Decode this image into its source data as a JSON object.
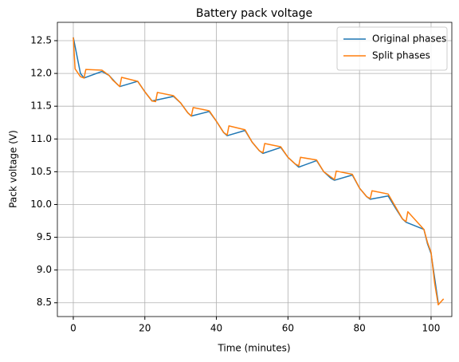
{
  "chart_data": {
    "type": "line",
    "title": "Battery pack voltage",
    "xlabel": "Time (minutes)",
    "ylabel": "Pack voltage (V)",
    "xlim": [
      -4.45,
      105.8
    ],
    "ylim": [
      8.29,
      12.78
    ],
    "xticks": [
      0,
      20,
      40,
      60,
      80,
      100
    ],
    "yticks": [
      8.5,
      {
        "value": 9,
        "label": "9.0"
      },
      9.5,
      {
        "value": 10,
        "label": "10.0"
      },
      10.5,
      {
        "value": 11,
        "label": "11.0"
      },
      11.5,
      {
        "value": 12,
        "label": "12.0"
      },
      12.5
    ],
    "grid": true,
    "legend": "upper right",
    "series": [
      {
        "name": "Original phases",
        "color": "#1f77b4",
        "x": [
          0,
          2,
          3,
          8,
          10,
          12,
          13,
          18,
          20,
          22,
          28,
          30,
          32,
          33,
          38,
          40,
          42,
          43,
          48,
          50,
          52,
          53,
          58,
          60,
          62,
          63,
          68,
          70,
          72,
          73,
          78,
          80,
          82,
          83,
          88,
          90,
          92,
          93,
          98,
          99,
          100,
          102
        ],
        "values": [
          12.55,
          12.0,
          11.93,
          12.03,
          11.97,
          11.85,
          11.8,
          11.88,
          11.72,
          11.58,
          11.65,
          11.55,
          11.4,
          11.35,
          11.42,
          11.27,
          11.1,
          11.05,
          11.13,
          10.95,
          10.82,
          10.78,
          10.87,
          10.72,
          10.62,
          10.57,
          10.67,
          10.5,
          10.4,
          10.37,
          10.45,
          10.25,
          10.12,
          10.08,
          10.13,
          9.95,
          9.78,
          9.73,
          9.62,
          9.4,
          9.25,
          8.5
        ]
      },
      {
        "name": "Split phases",
        "color": "#ff7f0e",
        "x": [
          0,
          0.5,
          2,
          3,
          3.5,
          8,
          10,
          11,
          13,
          13.5,
          18,
          20,
          22,
          23,
          23.5,
          28,
          30,
          32,
          33,
          33.5,
          38,
          40,
          42,
          43,
          43.5,
          48,
          50,
          52,
          53,
          53.5,
          58,
          60,
          62,
          63,
          63.5,
          68,
          70,
          72,
          73,
          73.5,
          78,
          80,
          82,
          83,
          83.5,
          88,
          90,
          92,
          93,
          93.5,
          98,
          99,
          100,
          101,
          102,
          103.5
        ],
        "values": [
          12.55,
          12.07,
          11.95,
          11.93,
          12.06,
          12.05,
          11.97,
          11.9,
          11.8,
          11.94,
          11.88,
          11.72,
          11.58,
          11.57,
          11.71,
          11.66,
          11.55,
          11.4,
          11.35,
          11.48,
          11.43,
          11.27,
          11.1,
          11.06,
          11.2,
          11.14,
          10.95,
          10.82,
          10.79,
          10.93,
          10.88,
          10.72,
          10.62,
          10.59,
          10.72,
          10.68,
          10.5,
          10.42,
          10.38,
          10.51,
          10.46,
          10.25,
          10.12,
          10.09,
          10.21,
          10.16,
          9.97,
          9.78,
          9.74,
          9.89,
          9.62,
          9.42,
          9.27,
          8.8,
          8.47,
          8.56
        ]
      }
    ]
  }
}
